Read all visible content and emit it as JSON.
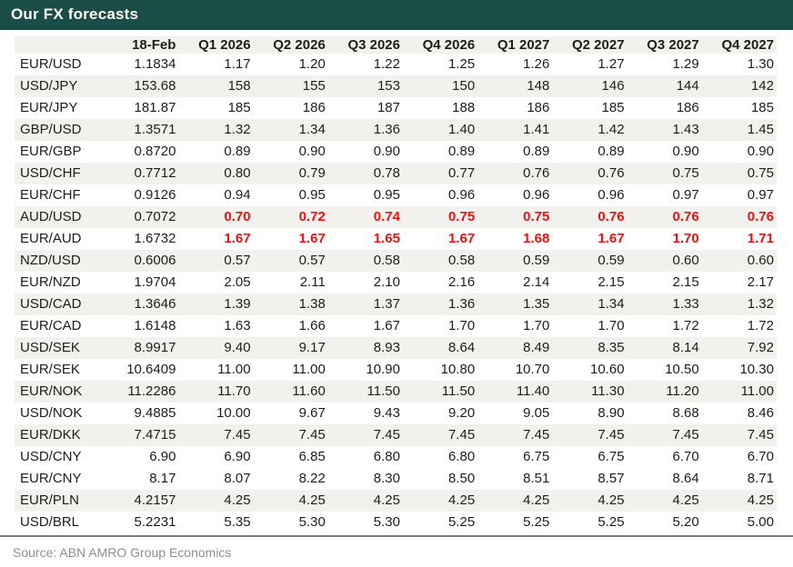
{
  "header": {
    "title": "Our FX forecasts"
  },
  "footer": {
    "source": "Source: ABN AMRO Group Economics"
  },
  "colors": {
    "brand_teal": "#1b4d48",
    "title_text": "#fdfcf2",
    "stripe_gray": "#f2f1ee",
    "highlight_red": "#ee1111",
    "body_text": "#1d1d1b",
    "source_gray": "#8e8e8e",
    "rule_gray": "#7a7a7a"
  },
  "chart_data": {
    "type": "table",
    "title": "Our FX forecasts",
    "columns": [
      "",
      "18-Feb",
      "Q1 2026",
      "Q2 2026",
      "Q3 2026",
      "Q4 2026",
      "Q1 2027",
      "Q2 2027",
      "Q3 2027",
      "Q4 2027"
    ],
    "rows": [
      {
        "pair": "EUR/USD",
        "values": [
          "1.1834",
          "1.17",
          "1.20",
          "1.22",
          "1.25",
          "1.26",
          "1.27",
          "1.29",
          "1.30"
        ],
        "shaded": false,
        "highlight": false
      },
      {
        "pair": "USD/JPY",
        "values": [
          "153.68",
          "158",
          "155",
          "153",
          "150",
          "148",
          "146",
          "144",
          "142"
        ],
        "shaded": true,
        "highlight": false
      },
      {
        "pair": "EUR/JPY",
        "values": [
          "181.87",
          "185",
          "186",
          "187",
          "188",
          "186",
          "185",
          "186",
          "185"
        ],
        "shaded": false,
        "highlight": false
      },
      {
        "pair": "GBP/USD",
        "values": [
          "1.3571",
          "1.32",
          "1.34",
          "1.36",
          "1.40",
          "1.41",
          "1.42",
          "1.43",
          "1.45"
        ],
        "shaded": true,
        "highlight": false
      },
      {
        "pair": "EUR/GBP",
        "values": [
          "0.8720",
          "0.89",
          "0.90",
          "0.90",
          "0.89",
          "0.89",
          "0.89",
          "0.90",
          "0.90"
        ],
        "shaded": false,
        "highlight": false
      },
      {
        "pair": "USD/CHF",
        "values": [
          "0.7712",
          "0.80",
          "0.79",
          "0.78",
          "0.77",
          "0.76",
          "0.76",
          "0.75",
          "0.75"
        ],
        "shaded": true,
        "highlight": false
      },
      {
        "pair": "EUR/CHF",
        "values": [
          "0.9126",
          "0.94",
          "0.95",
          "0.95",
          "0.96",
          "0.96",
          "0.96",
          "0.97",
          "0.97"
        ],
        "shaded": false,
        "highlight": false
      },
      {
        "pair": "AUD/USD",
        "values": [
          "0.7072",
          "0.70",
          "0.72",
          "0.74",
          "0.75",
          "0.75",
          "0.76",
          "0.76",
          "0.76"
        ],
        "shaded": true,
        "highlight": true
      },
      {
        "pair": "EUR/AUD",
        "values": [
          "1.6732",
          "1.67",
          "1.67",
          "1.65",
          "1.67",
          "1.68",
          "1.67",
          "1.70",
          "1.71"
        ],
        "shaded": false,
        "highlight": true
      },
      {
        "pair": "NZD/USD",
        "values": [
          "0.6006",
          "0.57",
          "0.57",
          "0.58",
          "0.58",
          "0.59",
          "0.59",
          "0.60",
          "0.60"
        ],
        "shaded": true,
        "highlight": false
      },
      {
        "pair": "EUR/NZD",
        "values": [
          "1.9704",
          "2.05",
          "2.11",
          "2.10",
          "2.16",
          "2.14",
          "2.15",
          "2.15",
          "2.17"
        ],
        "shaded": false,
        "highlight": false
      },
      {
        "pair": "USD/CAD",
        "values": [
          "1.3646",
          "1.39",
          "1.38",
          "1.37",
          "1.36",
          "1.35",
          "1.34",
          "1.33",
          "1.32"
        ],
        "shaded": true,
        "highlight": false
      },
      {
        "pair": "EUR/CAD",
        "values": [
          "1.6148",
          "1.63",
          "1.66",
          "1.67",
          "1.70",
          "1.70",
          "1.70",
          "1.72",
          "1.72"
        ],
        "shaded": false,
        "highlight": false
      },
      {
        "pair": "USD/SEK",
        "values": [
          "8.9917",
          "9.40",
          "9.17",
          "8.93",
          "8.64",
          "8.49",
          "8.35",
          "8.14",
          "7.92"
        ],
        "shaded": true,
        "highlight": false
      },
      {
        "pair": "EUR/SEK",
        "values": [
          "10.6409",
          "11.00",
          "11.00",
          "10.90",
          "10.80",
          "10.70",
          "10.60",
          "10.50",
          "10.30"
        ],
        "shaded": false,
        "highlight": false
      },
      {
        "pair": "EUR/NOK",
        "values": [
          "11.2286",
          "11.70",
          "11.60",
          "11.50",
          "11.50",
          "11.40",
          "11.30",
          "11.20",
          "11.00"
        ],
        "shaded": true,
        "highlight": false
      },
      {
        "pair": "USD/NOK",
        "values": [
          "9.4885",
          "10.00",
          "9.67",
          "9.43",
          "9.20",
          "9.05",
          "8.90",
          "8.68",
          "8.46"
        ],
        "shaded": false,
        "highlight": false
      },
      {
        "pair": "EUR/DKK",
        "values": [
          "7.4715",
          "7.45",
          "7.45",
          "7.45",
          "7.45",
          "7.45",
          "7.45",
          "7.45",
          "7.45"
        ],
        "shaded": true,
        "highlight": false
      },
      {
        "pair": "USD/CNY",
        "values": [
          "6.90",
          "6.90",
          "6.85",
          "6.80",
          "6.80",
          "6.75",
          "6.75",
          "6.70",
          "6.70"
        ],
        "shaded": false,
        "highlight": false
      },
      {
        "pair": "EUR/CNY",
        "values": [
          "8.17",
          "8.07",
          "8.22",
          "8.30",
          "8.50",
          "8.51",
          "8.57",
          "8.64",
          "8.71"
        ],
        "shaded": false,
        "highlight": false
      },
      {
        "pair": "EUR/PLN",
        "values": [
          "4.2157",
          "4.25",
          "4.25",
          "4.25",
          "4.25",
          "4.25",
          "4.25",
          "4.25",
          "4.25"
        ],
        "shaded": true,
        "highlight": false
      },
      {
        "pair": "USD/BRL",
        "values": [
          "5.2231",
          "5.35",
          "5.30",
          "5.30",
          "5.25",
          "5.25",
          "5.25",
          "5.20",
          "5.00"
        ],
        "shaded": false,
        "highlight": false
      }
    ],
    "highlight_note": "Forecast cells of AUD/USD and EUR/AUD rows are red bold; spot (18-Feb) values remain black",
    "legend_position": "none",
    "grid": "row-striping",
    "source": "Source: ABN AMRO Group Economics"
  }
}
